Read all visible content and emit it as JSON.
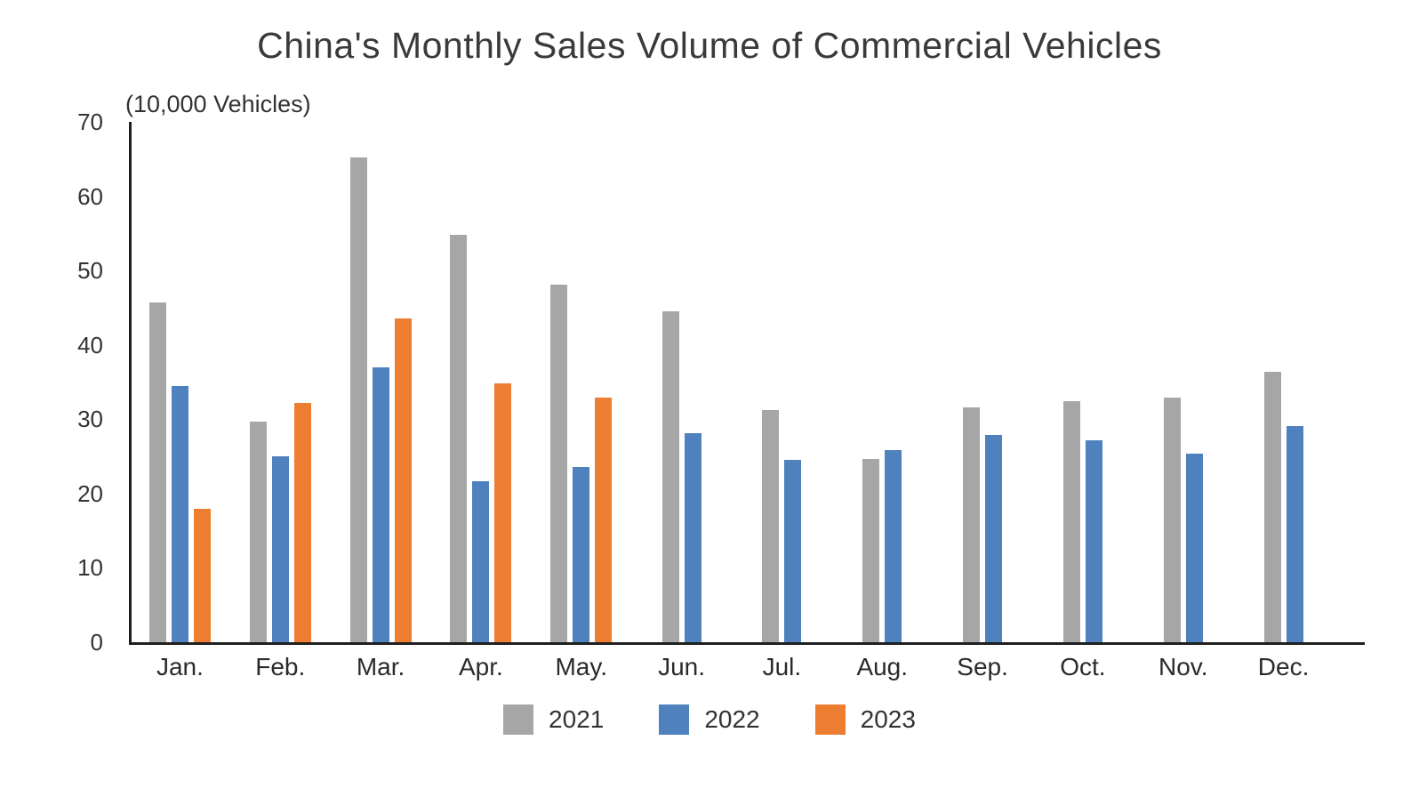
{
  "title": "China's Monthly Sales Volume of Commercial Vehicles",
  "unit_label": "(10,000 Vehicles)",
  "colors": {
    "series_2021": "#A6A6A6",
    "series_2022": "#4E81BD",
    "series_2023": "#ED7D31",
    "axis": "#1F1F1F",
    "text": "#333333"
  },
  "legend": {
    "position": "bottom",
    "items": [
      {
        "label": "2021",
        "color": "#A6A6A6"
      },
      {
        "label": "2022",
        "color": "#4E81BD"
      },
      {
        "label": "2023",
        "color": "#ED7D31"
      }
    ]
  },
  "chart_data": {
    "type": "bar",
    "title": "China's Monthly Sales Volume of Commercial Vehicles",
    "unit_label": "(10,000 Vehicles)",
    "xlabel": "",
    "ylabel": "10,000 Vehicles",
    "categories": [
      "Jan.",
      "Feb.",
      "Mar.",
      "Apr.",
      "May.",
      "Jun.",
      "Jul.",
      "Aug.",
      "Sep.",
      "Oct.",
      "Nov.",
      "Dec."
    ],
    "series": [
      {
        "name": "2021",
        "color": "#A6A6A6",
        "values": [
          45.7,
          29.7,
          65.2,
          54.8,
          48.1,
          44.5,
          31.2,
          24.7,
          31.6,
          32.4,
          32.9,
          36.4
        ]
      },
      {
        "name": "2022",
        "color": "#4E81BD",
        "values": [
          34.5,
          25.0,
          37.0,
          21.6,
          23.6,
          28.1,
          24.5,
          25.9,
          27.9,
          27.2,
          25.4,
          29.1
        ]
      },
      {
        "name": "2023",
        "color": "#ED7D31",
        "values": [
          18.0,
          32.2,
          43.5,
          34.8,
          32.9,
          null,
          null,
          null,
          null,
          null,
          null,
          null
        ]
      }
    ],
    "ylim": [
      0,
      70
    ],
    "ytick_step": 10,
    "yticks": [
      0,
      10,
      20,
      30,
      40,
      50,
      60,
      70
    ],
    "grid": false,
    "legend_position": "bottom"
  }
}
